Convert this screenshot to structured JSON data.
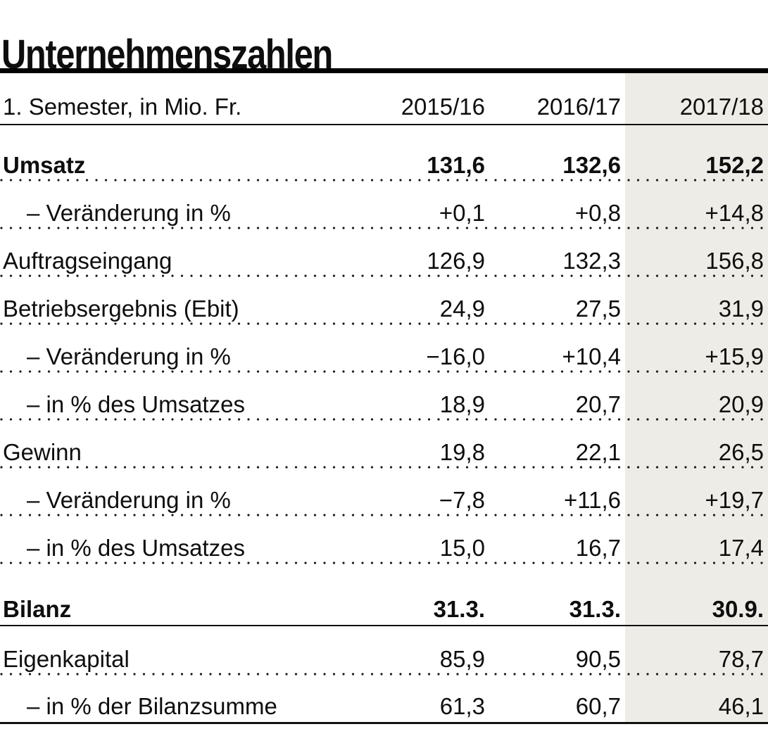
{
  "title": "Unternehmenszahlen",
  "highlight_color": "#edece6",
  "text_color": "#0e0e0e",
  "chart_data": {
    "type": "table",
    "title": "Unternehmenszahlen",
    "subtitle": "1. Semester, in Mio. Fr.",
    "columns": [
      "2015/16",
      "2016/17",
      "2017/18"
    ],
    "highlighted_column": "2017/18",
    "rows": [
      {
        "label": "Umsatz",
        "values": [
          "131,6",
          "132,6",
          "152,2"
        ],
        "bold": true,
        "indent": false,
        "separator": "dotted",
        "section_start": false
      },
      {
        "label": "– Veränderung in %",
        "values": [
          "+0,1",
          "+0,8",
          "+14,8"
        ],
        "bold": false,
        "indent": true,
        "separator": "dotted",
        "section_start": false
      },
      {
        "label": "Auftragseingang",
        "values": [
          "126,9",
          "132,3",
          "156,8"
        ],
        "bold": false,
        "indent": false,
        "separator": "dotted",
        "section_start": false
      },
      {
        "label": "Betriebsergebnis (Ebit)",
        "values": [
          "24,9",
          "27,5",
          "31,9"
        ],
        "bold": false,
        "indent": false,
        "separator": "dotted",
        "section_start": false
      },
      {
        "label": "– Veränderung in %",
        "values": [
          "−16,0",
          "+10,4",
          "+15,9"
        ],
        "bold": false,
        "indent": true,
        "separator": "dotted",
        "section_start": false
      },
      {
        "label": "– in % des Umsatzes",
        "values": [
          "18,9",
          "20,7",
          "20,9"
        ],
        "bold": false,
        "indent": true,
        "separator": "dotted",
        "section_start": false
      },
      {
        "label": "Gewinn",
        "values": [
          "19,8",
          "22,1",
          "26,5"
        ],
        "bold": false,
        "indent": false,
        "separator": "dotted",
        "section_start": false
      },
      {
        "label": "– Veränderung in %",
        "values": [
          "−7,8",
          "+11,6",
          "+19,7"
        ],
        "bold": false,
        "indent": true,
        "separator": "dotted",
        "section_start": false
      },
      {
        "label": "– in % des Umsatzes",
        "values": [
          "15,0",
          "16,7",
          "17,4"
        ],
        "bold": false,
        "indent": true,
        "separator": "dotted",
        "section_start": false
      },
      {
        "label": "Bilanz",
        "values": [
          "31.3.",
          "31.3.",
          "30.9."
        ],
        "bold": true,
        "indent": false,
        "separator": "solid",
        "section_start": true
      },
      {
        "label": "Eigenkapital",
        "values": [
          "85,9",
          "90,5",
          "78,7"
        ],
        "bold": false,
        "indent": false,
        "separator": "dotted",
        "section_start": false
      },
      {
        "label": "– in % der Bilanzsumme",
        "values": [
          "61,3",
          "60,7",
          "46,1"
        ],
        "bold": false,
        "indent": true,
        "separator": "end",
        "section_start": false
      }
    ]
  }
}
